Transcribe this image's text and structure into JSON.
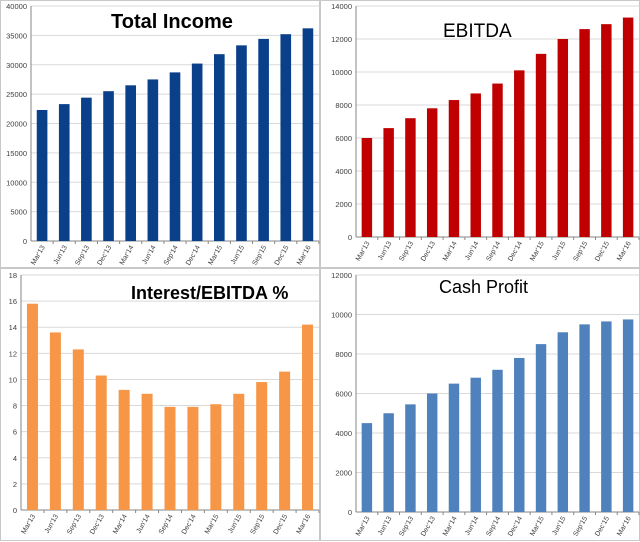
{
  "chart_data": [
    {
      "type": "bar",
      "title": "Total Income",
      "categories": [
        "Mar'13",
        "Jun'13",
        "Sep'13",
        "Dec'13",
        "Mar'14",
        "Jun'14",
        "Sep'14",
        "Dec'14",
        "Mar'15",
        "Jun'15",
        "Sep'15",
        "Dec'15",
        "Mar'16"
      ],
      "values": [
        22300,
        23300,
        24400,
        25500,
        26500,
        27500,
        28700,
        30200,
        31800,
        33300,
        34400,
        35200,
        36200
      ],
      "ylim": [
        0,
        40000
      ],
      "yticks": [
        "0",
        "5000",
        "10000",
        "15000",
        "20000",
        "25000",
        "30000",
        "35000",
        "40000"
      ],
      "grid": true,
      "color": "#0a3f8a"
    },
    {
      "type": "bar",
      "title": "EBITDA",
      "categories": [
        "Mar'13",
        "Jun'13",
        "Sep'13",
        "Dec'13",
        "Mar'14",
        "Jun'14",
        "Sep'14",
        "Dec'14",
        "Mar'15",
        "Jun'15",
        "Sep'15",
        "Dec'15",
        "Mar'16"
      ],
      "values": [
        6000,
        6600,
        7200,
        7800,
        8300,
        8700,
        9300,
        10100,
        11100,
        12000,
        12600,
        12900,
        13300
      ],
      "ylim": [
        0,
        14000
      ],
      "yticks": [
        "0",
        "2000",
        "4000",
        "6000",
        "8000",
        "10000",
        "12000",
        "14000"
      ],
      "grid": true,
      "color": "#c00000"
    },
    {
      "type": "bar",
      "title": "Interest/EBITDA %",
      "categories": [
        "Mar'13",
        "Jun'13",
        "Sep'13",
        "Dec'13",
        "Mar'14",
        "Jun'14",
        "Sep'14",
        "Dec'14",
        "Mar'15",
        "Jun'15",
        "Sep'15",
        "Dec'15",
        "Mar'16"
      ],
      "values": [
        15.8,
        13.6,
        12.3,
        10.3,
        9.2,
        8.9,
        7.9,
        7.9,
        8.1,
        8.9,
        9.8,
        10.6,
        14.2
      ],
      "ylim": [
        0,
        18
      ],
      "yticks": [
        "0",
        "2",
        "4",
        "6",
        "8",
        "10",
        "12",
        "14",
        "16",
        "18"
      ],
      "grid": true,
      "color": "#f79646"
    },
    {
      "type": "bar",
      "title": "Cash Profit",
      "categories": [
        "Mar'13",
        "Jun'13",
        "Sep'13",
        "Dec'13",
        "Mar'14",
        "Jun'14",
        "Sep'14",
        "Dec'14",
        "Mar'15",
        "Jun'15",
        "Sep'15",
        "Dec'15",
        "Mar'16"
      ],
      "values": [
        4500,
        5000,
        5450,
        6000,
        6500,
        6800,
        7200,
        7800,
        8500,
        9100,
        9500,
        9650,
        9750
      ],
      "ylim": [
        0,
        12000
      ],
      "yticks": [
        "0",
        "2000",
        "4000",
        "6000",
        "8000",
        "10000",
        "12000"
      ],
      "grid": true,
      "color": "#4f81bd"
    }
  ]
}
